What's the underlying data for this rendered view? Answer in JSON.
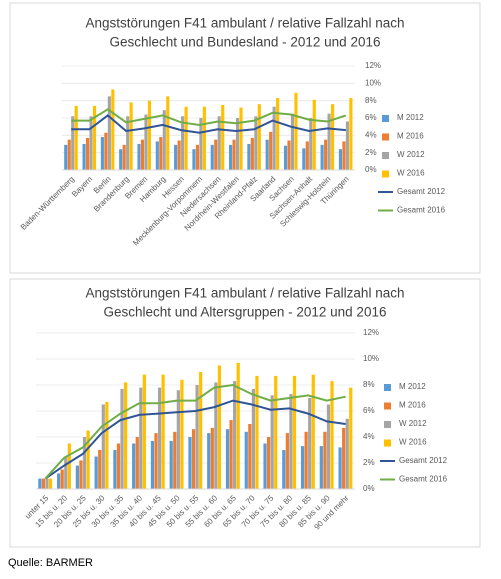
{
  "chart_data": [
    {
      "type": "combo",
      "title": [
        "Angststörungen F41 ambulant / relative Fallzahl nach",
        "Geschlecht und Bundesland - 2012 und 2016"
      ],
      "categories": [
        "Baden-Württemberg",
        "Bayern",
        "Berlin",
        "Brandenburg",
        "Bremen",
        "Hamburg",
        "Hessen",
        "Mecklenburg-Vorpommern",
        "Niedersachsen",
        "Nordrhein-Westfalen",
        "Rheinland-Pfalz",
        "Saarland",
        "Sachsen",
        "Sachsen-Anhalt",
        "Schleswig-Holstein",
        "Thüringen"
      ],
      "series": [
        {
          "name": "M 2012",
          "kind": "bar",
          "color": "#5b9bd5",
          "values": [
            2.9,
            3.0,
            3.8,
            2.4,
            3.0,
            3.3,
            2.9,
            2.4,
            2.9,
            2.9,
            3.0,
            3.5,
            2.8,
            2.5,
            2.9,
            2.4
          ]
        },
        {
          "name": "M 2016",
          "kind": "bar",
          "color": "#ed7d31",
          "values": [
            3.5,
            3.7,
            4.3,
            2.9,
            3.5,
            3.8,
            3.4,
            2.9,
            3.5,
            3.5,
            3.7,
            4.4,
            3.4,
            3.3,
            3.5,
            3.3
          ]
        },
        {
          "name": "W 2012",
          "kind": "bar",
          "color": "#a5a5a5",
          "values": [
            6.2,
            6.2,
            8.5,
            6.2,
            6.4,
            6.9,
            6.2,
            6.0,
            6.2,
            6.0,
            6.2,
            7.3,
            6.5,
            6.0,
            6.5,
            5.6
          ]
        },
        {
          "name": "W 2016",
          "kind": "bar",
          "color": "#ffc000",
          "values": [
            7.4,
            7.4,
            9.3,
            7.8,
            8.0,
            8.5,
            7.3,
            7.3,
            7.5,
            7.2,
            7.6,
            8.3,
            8.9,
            8.1,
            7.6,
            8.3
          ]
        },
        {
          "name": "Gesamt 2012",
          "kind": "line",
          "color": "#2f5597",
          "values": [
            4.7,
            4.7,
            6.3,
            4.5,
            4.8,
            5.2,
            4.6,
            4.3,
            4.7,
            4.5,
            4.7,
            5.7,
            5.0,
            4.5,
            4.8,
            4.6
          ]
        },
        {
          "name": "Gesamt 2016",
          "kind": "line",
          "color": "#70ad47",
          "values": [
            5.7,
            5.7,
            7.0,
            5.5,
            5.9,
            6.3,
            5.5,
            5.2,
            5.6,
            5.4,
            5.7,
            6.6,
            6.4,
            5.8,
            5.6,
            6.3
          ]
        }
      ],
      "ylim": [
        0,
        12
      ],
      "yticks": [
        {
          "value": 0,
          "label": "0%"
        },
        {
          "value": 2,
          "label": "2%"
        },
        {
          "value": 4,
          "label": "4%"
        },
        {
          "value": 6,
          "label": "6%"
        },
        {
          "value": 8,
          "label": "8%"
        },
        {
          "value": 10,
          "label": "10%"
        },
        {
          "value": 12,
          "label": "12%"
        }
      ],
      "grid": true,
      "legend": "right"
    },
    {
      "type": "combo",
      "title": [
        "Angststörungen F41 ambulant / relative Fallzahl nach",
        "Geschlecht und Altersgruppen - 2012 und 2016"
      ],
      "categories": [
        "unter 15",
        "15 bis u. 20",
        "20 bis u. 25",
        "25 bis u. 30",
        "30 bis u. 35",
        "35 bis u. 40",
        "40 bis u. 45",
        "45 bis u. 50",
        "50 bis u. 55",
        "55 bis u. 60",
        "60 bis u. 65",
        "65 bis u. 70",
        "70 bis u. 75",
        "75 bis u. 80",
        "80 bis u. 85",
        "85 bis u. 90",
        "90 und mehr"
      ],
      "series": [
        {
          "name": "M 2012",
          "kind": "bar",
          "color": "#5b9bd5",
          "values": [
            0.8,
            1.2,
            1.8,
            2.5,
            3.0,
            3.5,
            3.7,
            3.7,
            4.0,
            4.3,
            4.6,
            4.4,
            3.5,
            3.0,
            3.3,
            3.3,
            3.2
          ]
        },
        {
          "name": "M 2016",
          "kind": "bar",
          "color": "#ed7d31",
          "values": [
            0.8,
            1.5,
            2.2,
            3.0,
            3.5,
            4.0,
            4.3,
            4.4,
            4.6,
            4.7,
            5.3,
            5.0,
            4.0,
            4.3,
            4.4,
            4.4,
            4.7
          ]
        },
        {
          "name": "W 2012",
          "kind": "bar",
          "color": "#a5a5a5",
          "values": [
            0.8,
            2.5,
            4.0,
            6.5,
            7.7,
            7.8,
            7.8,
            7.6,
            8.0,
            8.2,
            8.3,
            7.7,
            7.2,
            7.3,
            7.0,
            6.5,
            5.4
          ]
        },
        {
          "name": "W 2016",
          "kind": "bar",
          "color": "#ffc000",
          "values": [
            0.8,
            3.5,
            4.5,
            6.7,
            8.2,
            8.8,
            8.8,
            8.4,
            9.0,
            9.5,
            9.7,
            8.7,
            8.7,
            8.7,
            8.8,
            8.3,
            7.8
          ]
        },
        {
          "name": "Gesamt 2012",
          "kind": "line",
          "color": "#2f5597",
          "values": [
            0.8,
            1.8,
            2.7,
            4.3,
            5.3,
            5.7,
            5.8,
            5.9,
            6.0,
            6.3,
            6.8,
            6.5,
            6.1,
            6.2,
            5.8,
            5.2,
            5.0
          ]
        },
        {
          "name": "Gesamt 2016",
          "kind": "line",
          "color": "#70ad47",
          "values": [
            0.8,
            2.4,
            3.2,
            4.8,
            5.8,
            6.6,
            6.6,
            6.8,
            6.8,
            7.8,
            8.0,
            7.3,
            6.8,
            7.0,
            7.2,
            6.8,
            7.1
          ]
        }
      ],
      "ylim": [
        0,
        12
      ],
      "yticks": [
        {
          "value": 0,
          "label": "0%"
        },
        {
          "value": 2,
          "label": "2%"
        },
        {
          "value": 4,
          "label": "4%"
        },
        {
          "value": 6,
          "label": "6%"
        },
        {
          "value": 8,
          "label": "8%"
        },
        {
          "value": 10,
          "label": "10%"
        },
        {
          "value": 12,
          "label": "12%"
        }
      ],
      "grid": true,
      "legend": "right"
    }
  ],
  "source": "Quelle: BARMER"
}
